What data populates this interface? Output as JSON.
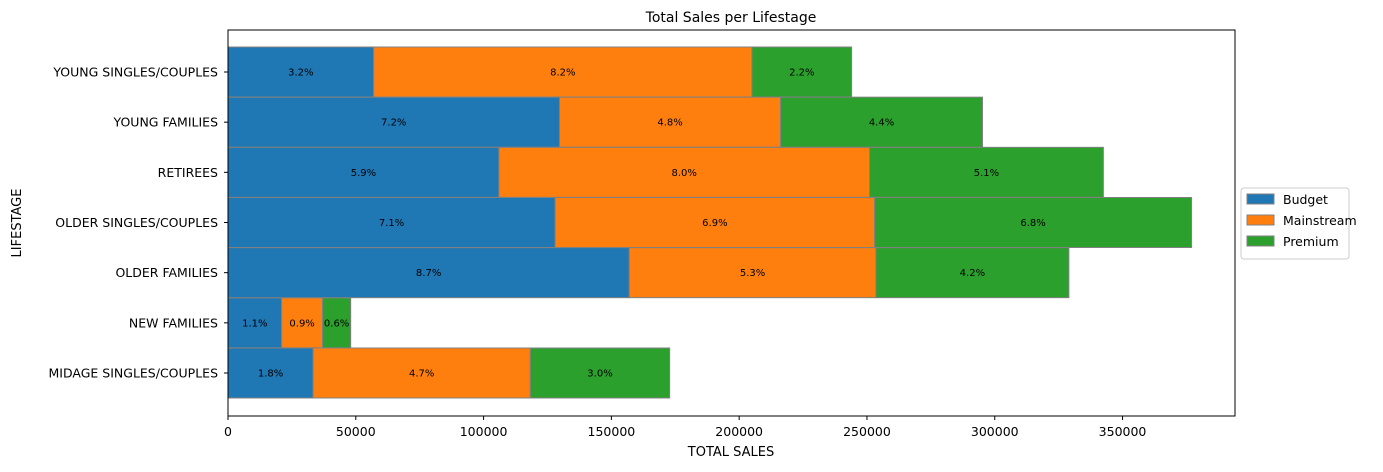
{
  "chart_data": {
    "type": "bar",
    "orientation": "horizontal",
    "stacked": true,
    "title": "Total Sales per Lifestage",
    "xlabel": "TOTAL SALES",
    "ylabel": "LIFESTAGE",
    "xlim": [
      0,
      394000
    ],
    "x_ticks": [
      0,
      50000,
      100000,
      150000,
      200000,
      250000,
      300000,
      350000
    ],
    "categories": [
      "MIDAGE SINGLES/COUPLES",
      "NEW FAMILIES",
      "OLDER FAMILIES",
      "OLDER SINGLES/COUPLES",
      "RETIREES",
      "YOUNG FAMILIES",
      "YOUNG SINGLES/COUPLES"
    ],
    "series": [
      {
        "name": "Budget",
        "color": "#1f77b4",
        "values": [
          33300,
          21000,
          157000,
          128000,
          106000,
          129700,
          57000
        ],
        "labels": [
          "1.8%",
          "1.1%",
          "8.7%",
          "7.1%",
          "5.9%",
          "7.2%",
          "3.2%"
        ]
      },
      {
        "name": "Mainstream",
        "color": "#ff7f0e",
        "values": [
          85000,
          16000,
          96500,
          125000,
          145000,
          86500,
          148000
        ],
        "labels": [
          "4.7%",
          "0.9%",
          "5.3%",
          "6.9%",
          "8.0%",
          "4.8%",
          "8.2%"
        ]
      },
      {
        "name": "Premium",
        "color": "#2ca02c",
        "values": [
          54500,
          11000,
          75500,
          124000,
          91500,
          79000,
          39000
        ],
        "labels": [
          "3.0%",
          "0.6%",
          "4.2%",
          "6.8%",
          "5.1%",
          "4.4%",
          "2.2%"
        ]
      }
    ],
    "grid": false,
    "legend_position": "right"
  }
}
